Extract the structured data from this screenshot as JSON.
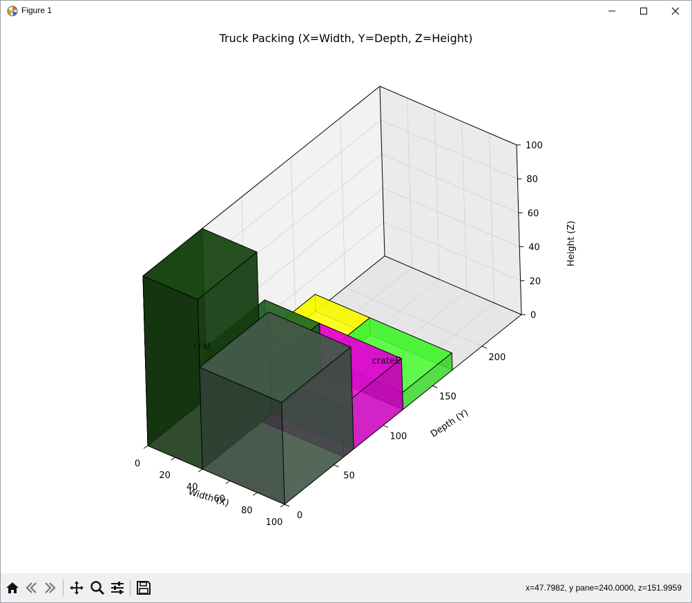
{
  "window": {
    "title": "Figure 1"
  },
  "status": {
    "coordinates": "x=47.7982, y pane=240.0000, z=151.9959"
  },
  "toolbar": {
    "tools": [
      "home-icon",
      "back-icon",
      "forward-icon",
      "pan-icon",
      "zoom-icon",
      "configure-subplots-icon",
      "save-icon"
    ]
  },
  "chart_data": {
    "type": "bar3d",
    "title": "Truck Packing (X=Width, Y=Depth, Z=Height)",
    "xlabel": "Width (X)",
    "ylabel": "Depth (Y)",
    "zlabel": "Height (Z)",
    "xlim": [
      0,
      100
    ],
    "ylim": [
      0,
      240
    ],
    "zlim": [
      0,
      100
    ],
    "xticks": [
      "0",
      "20",
      "40",
      "60",
      "80",
      "100"
    ],
    "yticks": [
      "0",
      "50",
      "100",
      "150",
      "200"
    ],
    "zticks": [
      "0",
      "20",
      "40",
      "60",
      "80",
      "100"
    ],
    "grid": true,
    "boxes": [
      {
        "label": "",
        "x": 0,
        "y": 120,
        "z": 0,
        "dx": 40,
        "dy": 50,
        "dz": 10,
        "color": "#eaff00"
      },
      {
        "label": "crateE",
        "x": 40,
        "y": 120,
        "z": 0,
        "dx": 60,
        "dy": 50,
        "dz": 10,
        "color": "#3ddb2a"
      },
      {
        "label": "",
        "x": 40,
        "y": 60,
        "z": 0,
        "dx": 60,
        "dy": 60,
        "dz": 30,
        "color": "#cc00c0"
      },
      {
        "label": "",
        "x": 0,
        "y": 60,
        "z": 0,
        "dx": 40,
        "dy": 60,
        "dz": 30,
        "color": "#1f5a1f"
      },
      {
        "label": "crat",
        "x": 0,
        "y": 0,
        "z": 0,
        "dx": 40,
        "dy": 60,
        "dz": 100,
        "color": "#143c0f"
      },
      {
        "label": "",
        "x": 40,
        "y": 0,
        "z": 0,
        "dx": 60,
        "dy": 70,
        "dz": 60,
        "color": "#3a5040"
      }
    ]
  }
}
